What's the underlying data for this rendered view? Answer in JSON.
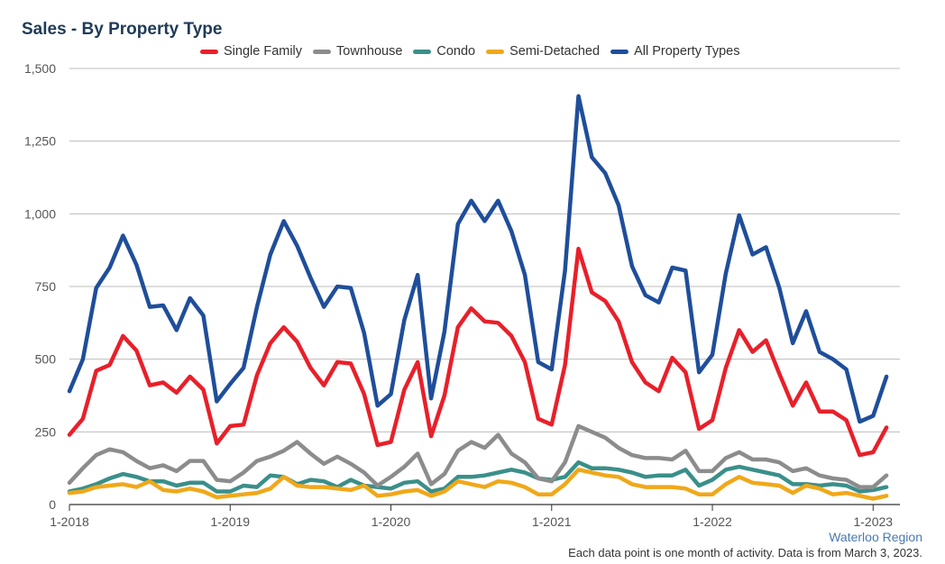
{
  "chart_data": {
    "type": "line",
    "title": "Sales - By Property Type",
    "x": [
      "2018-01",
      "2018-02",
      "2018-03",
      "2018-04",
      "2018-05",
      "2018-06",
      "2018-07",
      "2018-08",
      "2018-09",
      "2018-10",
      "2018-11",
      "2018-12",
      "2019-01",
      "2019-02",
      "2019-03",
      "2019-04",
      "2019-05",
      "2019-06",
      "2019-07",
      "2019-08",
      "2019-09",
      "2019-10",
      "2019-11",
      "2019-12",
      "2020-01",
      "2020-02",
      "2020-03",
      "2020-04",
      "2020-05",
      "2020-06",
      "2020-07",
      "2020-08",
      "2020-09",
      "2020-10",
      "2020-11",
      "2020-12",
      "2021-01",
      "2021-02",
      "2021-03",
      "2021-04",
      "2021-05",
      "2021-06",
      "2021-07",
      "2021-08",
      "2021-09",
      "2021-10",
      "2021-11",
      "2021-12",
      "2022-01",
      "2022-02",
      "2022-03",
      "2022-04",
      "2022-05",
      "2022-06",
      "2022-07",
      "2022-08",
      "2022-09",
      "2022-10",
      "2022-11",
      "2022-12",
      "2023-01",
      "2023-02"
    ],
    "x_tick_labels": [
      "1-2018",
      "1-2019",
      "1-2020",
      "1-2021",
      "1-2022",
      "1-2023"
    ],
    "y_tick_labels": [
      "0",
      "250",
      "500",
      "750",
      "1,000",
      "1,250",
      "1,500"
    ],
    "ylim": [
      0,
      1500
    ],
    "grid": true,
    "legend_position": "top",
    "series": [
      {
        "name": "Single Family",
        "color": "#e8202a",
        "values": [
          240,
          295,
          460,
          480,
          580,
          530,
          410,
          420,
          385,
          440,
          395,
          210,
          270,
          275,
          445,
          555,
          610,
          560,
          470,
          410,
          490,
          485,
          380,
          205,
          215,
          395,
          490,
          235,
          375,
          610,
          675,
          630,
          625,
          580,
          490,
          295,
          275,
          480,
          880,
          730,
          700,
          630,
          490,
          420,
          390,
          505,
          455,
          260,
          290,
          470,
          600,
          525,
          565,
          450,
          340,
          420,
          320,
          320,
          290,
          170,
          180,
          265
        ]
      },
      {
        "name": "Townhouse",
        "color": "#8c8c8c",
        "values": [
          75,
          125,
          170,
          190,
          180,
          150,
          125,
          135,
          115,
          150,
          150,
          85,
          80,
          110,
          150,
          165,
          185,
          215,
          175,
          140,
          165,
          140,
          110,
          65,
          95,
          130,
          175,
          70,
          105,
          185,
          215,
          195,
          240,
          175,
          145,
          90,
          80,
          145,
          270,
          250,
          230,
          195,
          170,
          160,
          160,
          155,
          185,
          115,
          115,
          160,
          180,
          155,
          155,
          145,
          115,
          125,
          100,
          90,
          85,
          60,
          60,
          100
        ]
      },
      {
        "name": "Condo",
        "color": "#3a8f8a",
        "values": [
          45,
          55,
          70,
          90,
          105,
          95,
          80,
          80,
          65,
          75,
          75,
          45,
          45,
          65,
          60,
          100,
          95,
          70,
          85,
          80,
          60,
          85,
          65,
          60,
          55,
          75,
          80,
          45,
          55,
          95,
          95,
          100,
          110,
          120,
          110,
          90,
          85,
          95,
          145,
          125,
          125,
          120,
          110,
          95,
          100,
          100,
          120,
          65,
          85,
          120,
          130,
          120,
          110,
          100,
          70,
          70,
          65,
          70,
          65,
          45,
          50,
          60
        ]
      },
      {
        "name": "Semi-Detached",
        "color": "#f0a81a",
        "values": [
          40,
          45,
          60,
          65,
          70,
          60,
          80,
          50,
          45,
          55,
          45,
          25,
          30,
          35,
          40,
          55,
          95,
          65,
          60,
          60,
          55,
          50,
          65,
          30,
          35,
          45,
          50,
          30,
          45,
          80,
          70,
          60,
          80,
          75,
          60,
          35,
          35,
          70,
          120,
          110,
          100,
          95,
          70,
          60,
          60,
          60,
          55,
          35,
          35,
          70,
          95,
          75,
          70,
          65,
          40,
          65,
          55,
          35,
          40,
          30,
          20,
          30
        ]
      },
      {
        "name": "All Property Types",
        "color": "#1f4e9a",
        "values": [
          390,
          500,
          745,
          815,
          925,
          825,
          680,
          685,
          600,
          710,
          650,
          355,
          415,
          470,
          680,
          860,
          975,
          890,
          780,
          680,
          750,
          745,
          590,
          340,
          380,
          635,
          790,
          365,
          595,
          965,
          1045,
          975,
          1045,
          940,
          790,
          490,
          465,
          805,
          1405,
          1195,
          1140,
          1030,
          820,
          720,
          695,
          815,
          805,
          455,
          515,
          795,
          995,
          860,
          885,
          745,
          555,
          665,
          525,
          500,
          465,
          285,
          305,
          440
        ]
      }
    ]
  },
  "footer": {
    "source": "Waterloo Region",
    "note": "Each data point is one month of activity. Data is from March 3, 2023."
  }
}
